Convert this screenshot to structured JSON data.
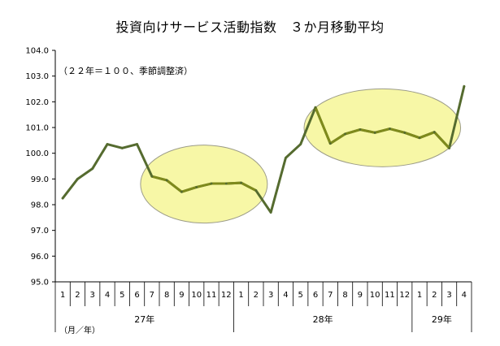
{
  "chart_data": {
    "type": "line",
    "title": "投資向けサービス活動指数　３か月移動平均",
    "subtitle": "（２２年＝１００、季節調整済）",
    "x_unit_label": "（月／年）",
    "ylim": [
      95.0,
      104.0
    ],
    "yticks": [
      "104.0",
      "103.0",
      "102.0",
      "101.0",
      "100.0",
      "99.0",
      "98.0",
      "97.0",
      "96.0",
      "95.0"
    ],
    "months": [
      "1",
      "2",
      "3",
      "4",
      "5",
      "6",
      "7",
      "8",
      "9",
      "10",
      "11",
      "12",
      "1",
      "2",
      "3",
      "4",
      "5",
      "6",
      "7",
      "8",
      "9",
      "10",
      "11",
      "12",
      "1",
      "2",
      "3",
      "4"
    ],
    "year_groups": [
      {
        "label": "27年",
        "count": 12
      },
      {
        "label": "28年",
        "count": 12
      },
      {
        "label": "29年",
        "count": 4
      }
    ],
    "series": [
      {
        "color": "#556b2f",
        "highlight_color": "#7f8a1c",
        "values": [
          98.25,
          99.0,
          99.4,
          100.35,
          100.2,
          100.35,
          99.1,
          98.95,
          98.5,
          98.68,
          98.82,
          98.82,
          98.85,
          98.55,
          97.7,
          99.82,
          100.35,
          101.78,
          100.38,
          100.75,
          100.92,
          100.8,
          100.95,
          100.8,
          100.6,
          100.82,
          100.2,
          102.6
        ],
        "highlight_ranges": [
          [
            6,
            13
          ],
          [
            17,
            26
          ]
        ]
      }
    ],
    "ellipse_color": "#f7f7a6"
  }
}
